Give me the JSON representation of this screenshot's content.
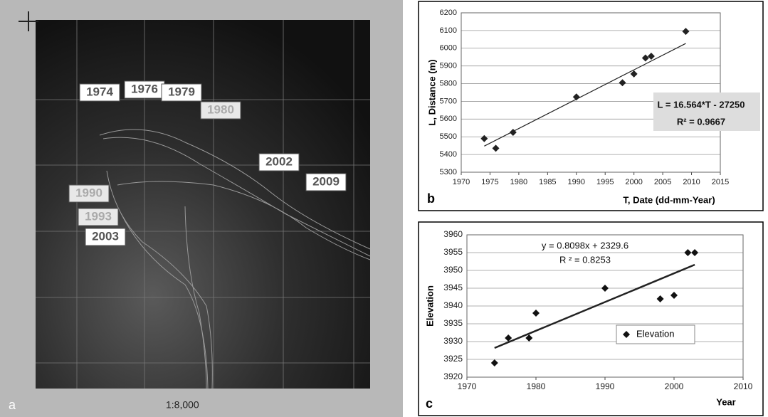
{
  "map": {
    "panel_label": "a",
    "scale": "1:8,000",
    "labels": [
      "1974",
      "1976",
      "1979",
      "1980",
      "1990",
      "1993",
      "2002",
      "2003",
      "2009"
    ]
  },
  "chart_data": [
    {
      "type": "scatter",
      "panel_label": "b",
      "x_label": "T, Date (dd-mm-Year)",
      "y_label": "L, Distance (m)",
      "x": [
        1974,
        1976,
        1979,
        1990,
        1998,
        2000,
        2002,
        2003,
        2009
      ],
      "series": [
        {
          "color": "#222222",
          "values": [
            5490,
            5435,
            5525,
            5725,
            5805,
            5855,
            5945,
            5955,
            6095
          ]
        }
      ],
      "trendline": {
        "x": [
          1974,
          2009
        ],
        "values": [
          5447.3,
          6027.1
        ]
      },
      "annotations": [
        "L = 16.564*T - 27250",
        "R² = 0.9667"
      ],
      "xlim": [
        1970,
        2015
      ],
      "xticks": [
        1970,
        1975,
        1980,
        1985,
        1990,
        1995,
        2000,
        2005,
        2010,
        2015
      ],
      "ylim": [
        5300,
        6200
      ],
      "yticks": [
        5300,
        5400,
        5500,
        5600,
        5700,
        5800,
        5900,
        6000,
        6100,
        6200
      ],
      "grid": true
    },
    {
      "type": "scatter",
      "panel_label": "c",
      "x_label": "Year",
      "y_label": "Elevation",
      "x": [
        1974,
        1976,
        1979,
        1980,
        1990,
        1998,
        2000,
        2002,
        2003
      ],
      "series": [
        {
          "name": "Elevation",
          "color": "#111111",
          "values": [
            3924,
            3931,
            3931,
            3938,
            3945,
            3942,
            3943,
            3955,
            3955
          ]
        }
      ],
      "trendline": {
        "x": [
          1974,
          2003
        ],
        "values": [
          3928.2,
          3951.6
        ]
      },
      "annotations": [
        "y = 0.8098x + 2329.6",
        "R ² = 0.8253"
      ],
      "xlim": [
        1970,
        2010
      ],
      "xticks": [
        1970,
        1980,
        1990,
        2000,
        2010
      ],
      "ylim": [
        3920,
        3960
      ],
      "yticks": [
        3920,
        3925,
        3930,
        3935,
        3940,
        3945,
        3950,
        3955,
        3960
      ],
      "grid": true,
      "legend": "lower right"
    }
  ]
}
